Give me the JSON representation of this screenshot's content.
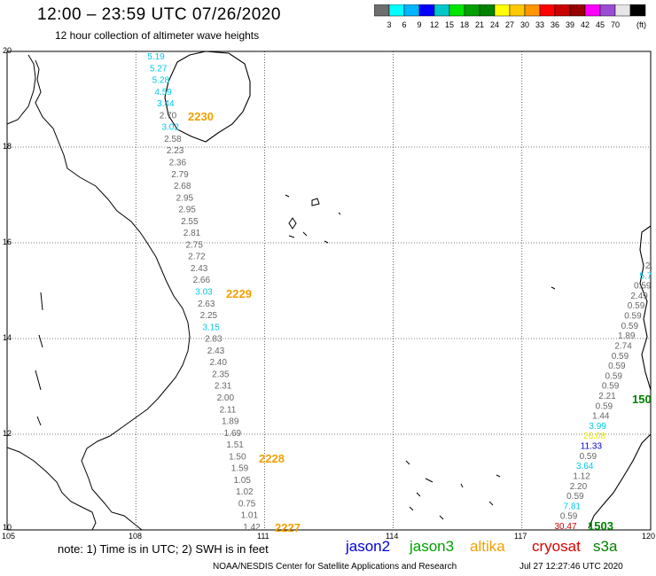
{
  "title": "12:00 – 23:59 UTC 07/26/2020",
  "subtitle": "12 hour collection of altimeter wave heights",
  "colorbar": {
    "colors": [
      "#6e6e6e",
      "#00ffff",
      "#00b4ff",
      "#0000ff",
      "#00c8c8",
      "#00e600",
      "#00a000",
      "#008200",
      "#ffff00",
      "#ffc800",
      "#ff9600",
      "#ff0000",
      "#c80000",
      "#960000",
      "#ff00ff",
      "#9b4dd4",
      "#e6e6e6",
      "#000000"
    ],
    "labels": [
      "3",
      "6",
      "9",
      "12",
      "15",
      "18",
      "21",
      "24",
      "27",
      "30",
      "33",
      "36",
      "39",
      "42",
      "45",
      "70"
    ],
    "unit": "(ft)"
  },
  "axes": {
    "lon_ticks": [
      "105",
      "108",
      "111",
      "114",
      "117",
      "120"
    ],
    "lat_ticks": [
      "10",
      "12",
      "14",
      "16",
      "18",
      "20"
    ],
    "lon_range": [
      105,
      120
    ],
    "lat_range": [
      10,
      20
    ]
  },
  "tracks": [
    {
      "label": "2230",
      "color": "#f0a000"
    },
    {
      "label": "2229",
      "color": "#f0a000"
    },
    {
      "label": "2228",
      "color": "#f0a000"
    },
    {
      "label": "2227",
      "color": "#f0a000"
    },
    {
      "label": "150",
      "color": "#008200"
    },
    {
      "label": "1503",
      "color": "#008200"
    }
  ],
  "wave_track_main": [
    {
      "v": "5.19",
      "c": "#00c8e6"
    },
    {
      "v": "5.27",
      "c": "#00c8e6"
    },
    {
      "v": "5.28",
      "c": "#00c8e6"
    },
    {
      "v": "4.59",
      "c": "#00c8e6"
    },
    {
      "v": "3.44",
      "c": "#00c8e6"
    },
    {
      "v": "2.70",
      "c": "#666666"
    },
    {
      "v": "3.02",
      "c": "#00c8e6"
    },
    {
      "v": "2.58",
      "c": "#666666"
    },
    {
      "v": "2.23",
      "c": "#666666"
    },
    {
      "v": "2.36",
      "c": "#666666"
    },
    {
      "v": "2.79",
      "c": "#666666"
    },
    {
      "v": "2.68",
      "c": "#666666"
    },
    {
      "v": "2.95",
      "c": "#666666"
    },
    {
      "v": "2.95",
      "c": "#666666"
    },
    {
      "v": "2.55",
      "c": "#666666"
    },
    {
      "v": "2.81",
      "c": "#666666"
    },
    {
      "v": "2.75",
      "c": "#666666"
    },
    {
      "v": "2.72",
      "c": "#666666"
    },
    {
      "v": "2.43",
      "c": "#666666"
    },
    {
      "v": "2.66",
      "c": "#666666"
    },
    {
      "v": "3.03",
      "c": "#00c8e6"
    },
    {
      "v": "2.63",
      "c": "#666666"
    },
    {
      "v": "2.25",
      "c": "#666666"
    },
    {
      "v": "3.15",
      "c": "#00c8e6"
    },
    {
      "v": "2.83",
      "c": "#666666"
    },
    {
      "v": "2.43",
      "c": "#666666"
    },
    {
      "v": "2.40",
      "c": "#666666"
    },
    {
      "v": "2.35",
      "c": "#666666"
    },
    {
      "v": "2.31",
      "c": "#666666"
    },
    {
      "v": "2.00",
      "c": "#666666"
    },
    {
      "v": "2.11",
      "c": "#666666"
    },
    {
      "v": "1.89",
      "c": "#666666"
    },
    {
      "v": "1.69",
      "c": "#666666"
    },
    {
      "v": "1.51",
      "c": "#666666"
    },
    {
      "v": "1.50",
      "c": "#666666"
    },
    {
      "v": "1.59",
      "c": "#666666"
    },
    {
      "v": "1.05",
      "c": "#666666"
    },
    {
      "v": "1.02",
      "c": "#666666"
    },
    {
      "v": "0.75",
      "c": "#666666"
    },
    {
      "v": "1.01",
      "c": "#666666"
    },
    {
      "v": "1.42",
      "c": "#666666"
    }
  ],
  "wave_track_east": [
    {
      "v": "2.",
      "c": "#666666"
    },
    {
      "v": "5.7",
      "c": "#00c8e6"
    },
    {
      "v": "0.59",
      "c": "#666666"
    },
    {
      "v": "2.49",
      "c": "#666666"
    },
    {
      "v": "0.59",
      "c": "#666666"
    },
    {
      "v": "0.59",
      "c": "#666666"
    },
    {
      "v": "0.59",
      "c": "#666666"
    },
    {
      "v": "1.89",
      "c": "#666666"
    },
    {
      "v": "2.74",
      "c": "#666666"
    },
    {
      "v": "0.59",
      "c": "#666666"
    },
    {
      "v": "0.59",
      "c": "#666666"
    },
    {
      "v": "0.59",
      "c": "#666666"
    },
    {
      "v": "0.59",
      "c": "#666666"
    },
    {
      "v": "2.21",
      "c": "#666666"
    },
    {
      "v": "0.59",
      "c": "#666666"
    },
    {
      "v": "1.44",
      "c": "#666666"
    },
    {
      "v": "3.99",
      "c": "#00c8e6"
    },
    {
      "v": "26.08",
      "c": "#e6e600"
    },
    {
      "v": "11.33",
      "c": "#0000c8"
    },
    {
      "v": "0.59",
      "c": "#666666"
    },
    {
      "v": "3.64",
      "c": "#00c8e6"
    },
    {
      "v": "1.12",
      "c": "#666666"
    },
    {
      "v": "2.20",
      "c": "#666666"
    },
    {
      "v": "0.59",
      "c": "#666666"
    },
    {
      "v": "7.81",
      "c": "#00c8e6"
    },
    {
      "v": "0.59",
      "c": "#666666"
    },
    {
      "v": "30.47",
      "c": "#c80000"
    }
  ],
  "footer": {
    "note": "note:  1) Time is in UTC;  2) SWH is in feet",
    "legend": [
      {
        "label": "jason2",
        "color": "#0000dc"
      },
      {
        "label": "jason3",
        "color": "#00a000"
      },
      {
        "label": "altika",
        "color": "#f0a000"
      },
      {
        "label": "cryosat",
        "color": "#dc0000"
      },
      {
        "label": "s3a",
        "color": "#008200"
      }
    ],
    "credit": "NOAA/NESDIS Center for Satellite Applications and Research",
    "timestamp": "Jul 27 12:27:46 UTC 2020"
  }
}
